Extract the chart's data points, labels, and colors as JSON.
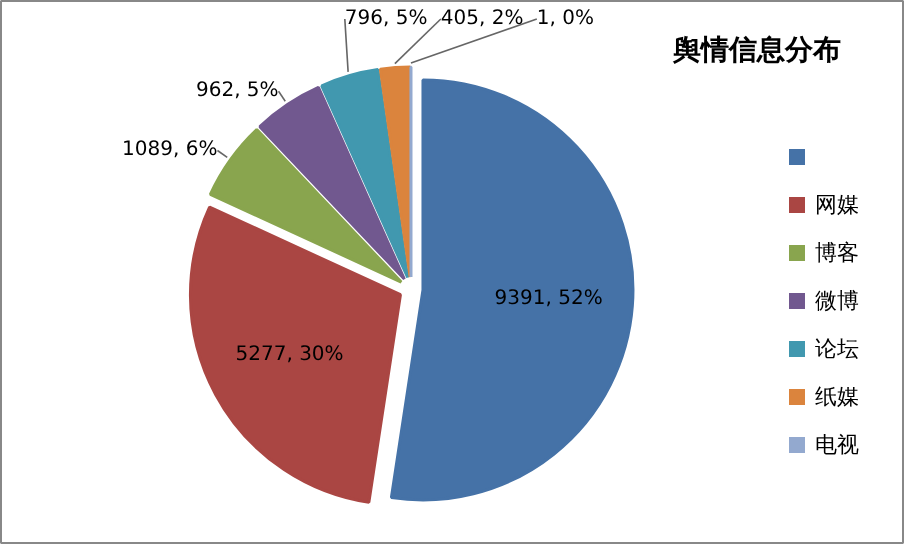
{
  "chart_data": {
    "type": "pie",
    "title": "舆情信息分布",
    "categories": [
      null,
      "网媒",
      "博客",
      "微博",
      "论坛",
      "纸媒",
      "电视"
    ],
    "values": [
      9391,
      5277,
      1089,
      962,
      796,
      405,
      1
    ],
    "colors": [
      "#4572a7",
      "#aa4643",
      "#89a54e",
      "#71588f",
      "#4198af",
      "#db843d",
      "#93a9cf"
    ],
    "value_labels": [
      "9391, 52%",
      "5277, 30%",
      "1089, 6%",
      "962, 5%",
      "796, 5%",
      "405, 2%",
      "1, 0%"
    ],
    "legend": "right"
  }
}
